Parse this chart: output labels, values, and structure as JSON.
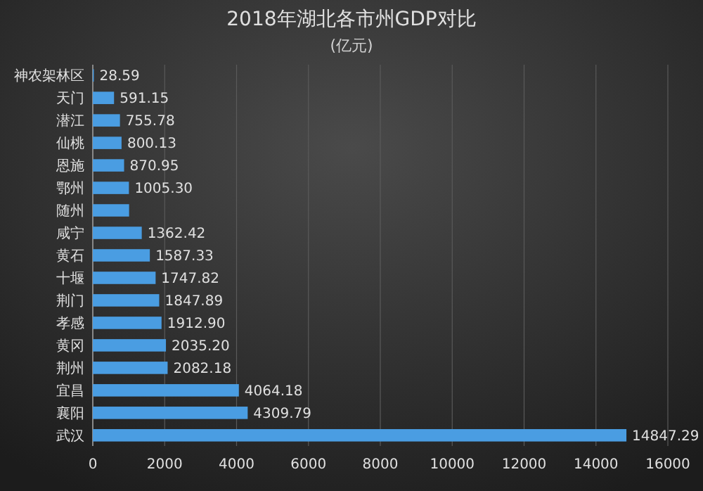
{
  "chart_data": {
    "type": "bar",
    "orientation": "horizontal",
    "title": "2018年湖北各市州GDP对比",
    "subtitle": "(亿元)",
    "categories": [
      "神农架林区",
      "天门",
      "潜江",
      "仙桃",
      "恩施",
      "鄂州",
      "随州",
      "咸宁",
      "黄石",
      "十堰",
      "荆门",
      "孝感",
      "黄冈",
      "荆州",
      "宜昌",
      "襄阳",
      "武汉"
    ],
    "values": [
      28.59,
      591.15,
      755.78,
      800.13,
      870.95,
      1005.3,
      1010,
      1362.42,
      1587.33,
      1747.82,
      1847.89,
      1912.9,
      2035.2,
      2082.18,
      4064.18,
      4309.79,
      14847.29
    ],
    "value_labels": [
      "28.59",
      "591.15",
      "755.78",
      "800.13",
      "870.95",
      "1005.30",
      null,
      "1362.42",
      "1587.33",
      "1747.82",
      "1847.89",
      "1912.90",
      "2035.20",
      "2082.18",
      "4064.18",
      "4309.79",
      "14847.29"
    ],
    "color": "#4a9de2",
    "xlim": [
      0,
      16000
    ],
    "xticks": [
      0,
      2000,
      4000,
      6000,
      8000,
      10000,
      12000,
      14000,
      16000
    ],
    "grid": "x"
  }
}
